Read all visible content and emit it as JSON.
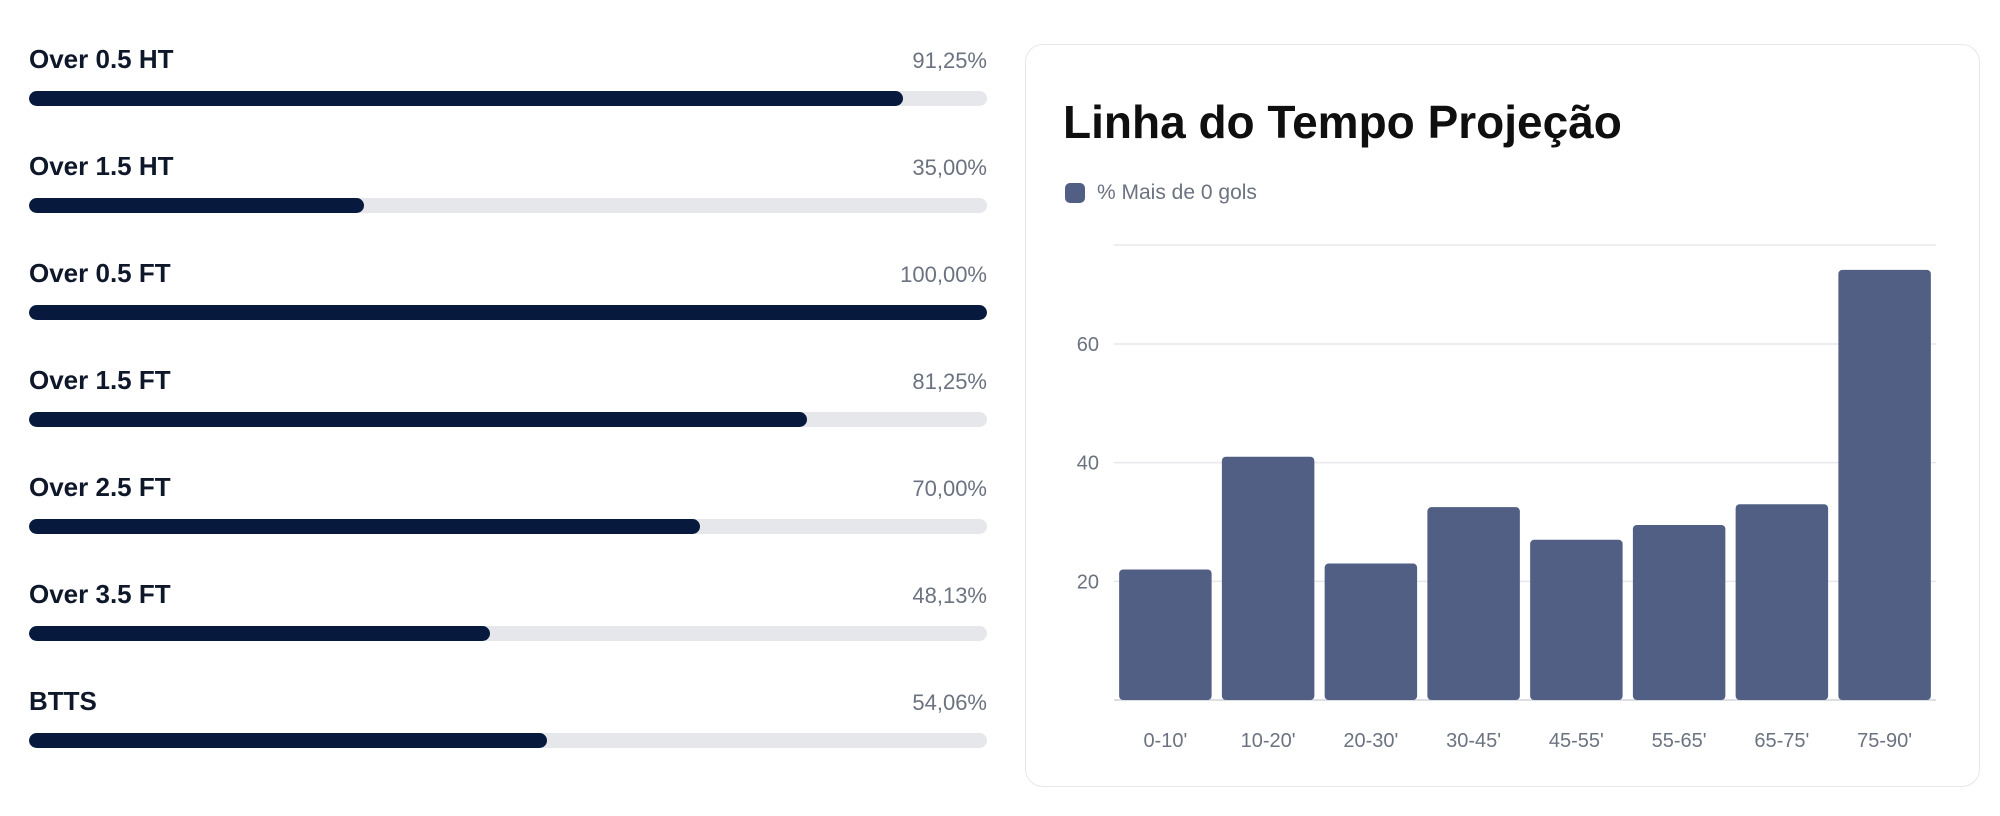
{
  "stats": [
    {
      "label": "Over 0.5 HT",
      "value_text": "91,25%",
      "percent": 91.25
    },
    {
      "label": "Over 1.5 HT",
      "value_text": "35,00%",
      "percent": 35.0
    },
    {
      "label": "Over 0.5 FT",
      "value_text": "100,00%",
      "percent": 100.0
    },
    {
      "label": "Over 1.5 FT",
      "value_text": "81,25%",
      "percent": 81.25
    },
    {
      "label": "Over 2.5 FT",
      "value_text": "70,00%",
      "percent": 70.0
    },
    {
      "label": "Over 3.5 FT",
      "value_text": "48,13%",
      "percent": 48.13
    },
    {
      "label": "BTTS",
      "value_text": "54,06%",
      "percent": 54.06
    }
  ],
  "colors": {
    "progress_fill": "#071a3d",
    "progress_track": "#e5e7eb",
    "bar": "#525f84",
    "grid": "#e8e8ec",
    "tick_text": "#6b7280"
  },
  "chart_data": {
    "type": "bar",
    "title": "Linha do Tempo Projeção",
    "categories": [
      "0-10'",
      "10-20'",
      "20-30'",
      "30-45'",
      "45-55'",
      "55-65'",
      "65-75'",
      "75-90'"
    ],
    "series": [
      {
        "name": "% Mais de 0 gols",
        "values": [
          22,
          41,
          23,
          32.5,
          27,
          29.5,
          33,
          72.5
        ]
      }
    ],
    "yticks": [
      20,
      40,
      60
    ],
    "ylim": [
      0,
      75
    ],
    "grid": true,
    "legend": "top-left",
    "xlabel": "",
    "ylabel": ""
  }
}
